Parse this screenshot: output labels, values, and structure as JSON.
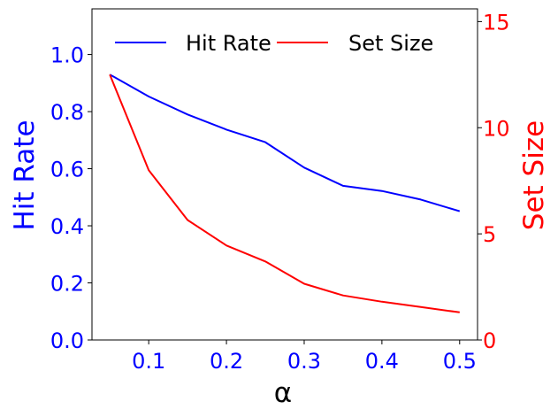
{
  "chart_data": {
    "type": "line",
    "x": [
      0.05,
      0.1,
      0.15,
      0.2,
      0.25,
      0.3,
      0.35,
      0.4,
      0.45,
      0.5
    ],
    "xlabel": "α",
    "xlim": [
      0.027,
      0.523
    ],
    "xticks": [
      0.1,
      0.2,
      0.3,
      0.4,
      0.5
    ],
    "xtick_labels": [
      "0.1",
      "0.2",
      "0.3",
      "0.4",
      "0.5"
    ],
    "series": [
      {
        "name": "Hit Rate",
        "axis": "left",
        "color": "#0000ff",
        "values": [
          0.93,
          0.853,
          0.79,
          0.737,
          0.693,
          0.604,
          0.54,
          0.522,
          0.492,
          0.451
        ]
      },
      {
        "name": "Set Size",
        "axis": "right",
        "color": "#ff0000",
        "values": [
          12.5,
          8.0,
          5.65,
          4.45,
          3.7,
          2.65,
          2.1,
          1.8,
          1.55,
          1.3
        ]
      }
    ],
    "y_left": {
      "label": "Hit Rate",
      "color": "#0000ff",
      "ylim": [
        0,
        1.16
      ],
      "ticks": [
        0,
        0.2,
        0.4,
        0.6,
        0.8,
        1.0
      ],
      "tick_labels": [
        "0.0",
        "0.2",
        "0.4",
        "0.6",
        "0.8",
        "1.0"
      ]
    },
    "y_right": {
      "label": "Set Size",
      "color": "#ff0000",
      "ylim": [
        0,
        15.6
      ],
      "ticks": [
        0,
        5,
        10,
        15
      ],
      "tick_labels": [
        "0",
        "5",
        "10",
        "15"
      ]
    },
    "grid": false,
    "legend": "top"
  }
}
